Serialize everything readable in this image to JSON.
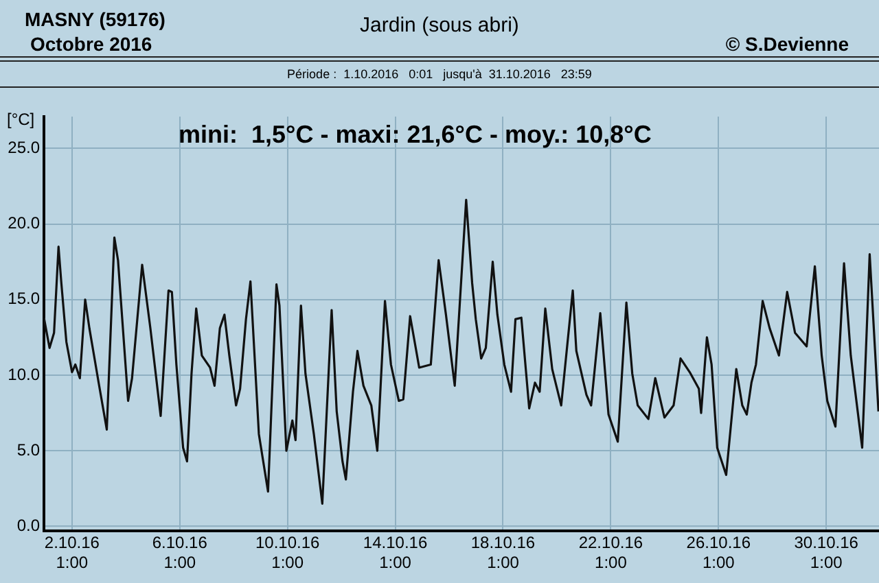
{
  "chart_data": {
    "type": "line",
    "title": "Jardin (sous abri)",
    "subtitle": "Période :  1.10.2016   0:01   jusqu'à  31.10.2016   23:59",
    "ylabel": "[°C]",
    "annotations": [
      "MASNY (59176)",
      "Octobre 2016",
      "© S.Devienne",
      "mini:  1,5°C - maxi: 21,6°C - moy.: 10,8°C"
    ],
    "x": [
      "2016-10-01T00:01",
      "2016-10-01T05:00",
      "2016-10-01T09:00",
      "2016-10-01T13:00",
      "2016-10-01T15:30",
      "2016-10-01T20:00",
      "2016-10-02T01:00",
      "2016-10-02T04:00",
      "2016-10-02T08:00",
      "2016-10-02T12:45",
      "2016-10-02T16:30",
      "2016-10-03T00:45",
      "2016-10-03T08:00",
      "2016-10-03T14:45",
      "2016-10-03T18:00",
      "2016-10-04T03:00",
      "2016-10-04T06:30",
      "2016-10-04T15:30",
      "2016-10-04T22:50",
      "2016-10-05T08:00",
      "2016-10-05T15:00",
      "2016-10-05T18:00",
      "2016-10-05T22:00",
      "2016-10-06T04:00",
      "2016-10-06T07:30",
      "2016-10-06T11:30",
      "2016-10-06T15:40",
      "2016-10-06T20:40",
      "2016-10-07T04:00",
      "2016-10-07T08:00",
      "2016-10-07T12:45",
      "2016-10-07T16:50",
      "2016-10-07T21:10",
      "2016-10-08T03:10",
      "2016-10-08T06:45",
      "2016-10-08T12:00",
      "2016-10-08T16:00",
      "2016-10-08T23:30",
      "2016-10-09T07:40",
      "2016-10-09T15:10",
      "2016-10-09T17:50",
      "2016-10-10T00:00",
      "2016-10-10T05:20",
      "2016-10-10T08:10",
      "2016-10-10T13:00",
      "2016-10-10T17:00",
      "2016-10-11T00:30",
      "2016-10-11T08:00",
      "2016-10-11T16:20",
      "2016-10-11T20:50",
      "2016-10-12T02:00",
      "2016-10-12T05:00",
      "2016-10-12T11:20",
      "2016-10-12T15:20",
      "2016-10-12T20:40",
      "2016-10-13T03:40",
      "2016-10-13T09:00",
      "2016-10-13T15:50",
      "2016-10-13T21:10",
      "2016-10-14T04:10",
      "2016-10-14T08:10",
      "2016-10-14T14:15",
      "2016-10-14T22:20",
      "2016-10-15T08:40",
      "2016-10-15T15:40",
      "2016-10-15T22:10",
      "2016-10-16T06:00",
      "2016-10-16T16:10",
      "2016-10-16T21:30",
      "2016-10-17T00:45",
      "2016-10-17T05:35",
      "2016-10-17T09:40",
      "2016-10-17T15:50",
      "2016-10-17T20:00",
      "2016-10-18T02:10",
      "2016-10-18T08:10",
      "2016-10-18T12:05",
      "2016-10-18T17:20",
      "2016-10-19T00:20",
      "2016-10-19T05:30",
      "2016-10-19T09:40",
      "2016-10-19T14:40",
      "2016-10-19T20:50",
      "2016-10-20T04:50",
      "2016-10-20T15:10",
      "2016-10-20T18:20",
      "2016-10-21T03:20",
      "2016-10-21T07:30",
      "2016-10-21T15:40",
      "2016-10-21T23:00",
      "2016-10-22T07:15",
      "2016-10-22T14:55",
      "2016-10-22T20:10",
      "2016-10-23T01:00",
      "2016-10-23T10:30",
      "2016-10-23T16:40",
      "2016-10-24T00:50",
      "2016-10-24T09:00",
      "2016-10-24T15:10",
      "2016-10-24T23:20",
      "2016-10-25T07:30",
      "2016-10-25T09:30",
      "2016-10-25T14:40",
      "2016-10-25T18:50",
      "2016-10-25T23:50",
      "2016-10-26T07:50",
      "2016-10-26T16:50",
      "2016-10-26T22:10",
      "2016-10-27T02:10",
      "2016-10-27T06:20",
      "2016-10-27T10:20",
      "2016-10-27T16:20",
      "2016-10-27T22:35",
      "2016-10-28T06:50",
      "2016-10-28T14:10",
      "2016-10-28T21:10",
      "2016-10-29T07:30",
      "2016-10-29T14:50",
      "2016-10-29T20:55",
      "2016-10-30T01:55",
      "2016-10-30T09:10",
      "2016-10-30T16:50",
      "2016-10-30T22:50",
      "2016-10-31T09:00",
      "2016-10-31T15:40",
      "2016-10-31T23:30"
    ],
    "series": [
      {
        "color": "#111111",
        "values": [
          13.8,
          11.8,
          12.8,
          18.5,
          16.1,
          12.2,
          10.2,
          10.7,
          9.8,
          15.0,
          13.1,
          9.5,
          6.4,
          19.1,
          17.6,
          8.3,
          9.8,
          17.3,
          13.1,
          7.3,
          15.6,
          15.5,
          10.7,
          5.2,
          4.3,
          10.1,
          14.4,
          11.3,
          10.5,
          9.3,
          13.1,
          14.0,
          11.3,
          8.0,
          9.1,
          13.7,
          16.2,
          6.1,
          2.3,
          16.0,
          14.6,
          5.0,
          7.0,
          5.7,
          14.6,
          10.1,
          6.1,
          1.5,
          14.3,
          7.6,
          4.3,
          3.1,
          8.9,
          11.6,
          9.3,
          8.0,
          5.0,
          14.9,
          10.7,
          8.3,
          8.4,
          13.9,
          10.5,
          10.7,
          17.6,
          14.0,
          9.3,
          21.6,
          16.1,
          13.7,
          11.1,
          11.8,
          17.5,
          14.0,
          10.7,
          8.9,
          13.7,
          13.8,
          7.8,
          9.5,
          8.9,
          14.4,
          10.4,
          8.0,
          15.6,
          11.6,
          8.7,
          8.0,
          14.1,
          7.4,
          5.6,
          14.8,
          10.1,
          8.0,
          7.1,
          9.8,
          7.2,
          8.0,
          11.1,
          10.2,
          9.1,
          7.5,
          12.5,
          10.7,
          5.2,
          3.4,
          10.4,
          8.0,
          7.4,
          9.5,
          10.7,
          14.9,
          13.1,
          11.3,
          15.5,
          12.8,
          11.9,
          17.2,
          11.3,
          8.3,
          6.6,
          17.4,
          11.3,
          5.2,
          18.0,
          7.6
        ]
      }
    ],
    "xlim": [
      "2016-10-01T00:01",
      "2016-10-31T23:59"
    ],
    "xticks": [
      {
        "value": "2016-10-02T01:00",
        "label": "2.10.16 1:00"
      },
      {
        "value": "2016-10-06T01:00",
        "label": "6.10.16 1:00"
      },
      {
        "value": "2016-10-10T01:00",
        "label": "10.10.16 1:00"
      },
      {
        "value": "2016-10-14T01:00",
        "label": "14.10.16 1:00"
      },
      {
        "value": "2016-10-18T01:00",
        "label": "18.10.16 1:00"
      },
      {
        "value": "2016-10-22T01:00",
        "label": "22.10.16 1:00"
      },
      {
        "value": "2016-10-26T01:00",
        "label": "26.10.16 1:00"
      },
      {
        "value": "2016-10-30T01:00",
        "label": "30.10.16 1:00"
      }
    ],
    "ylim": [
      -0.3,
      27.1
    ],
    "yticks": [
      {
        "value": 0,
        "label": "0.0"
      },
      {
        "value": 5,
        "label": "5.0"
      },
      {
        "value": 10,
        "label": "10.0"
      },
      {
        "value": 15,
        "label": "15.0"
      },
      {
        "value": 20,
        "label": "20.0"
      },
      {
        "value": 25,
        "label": "25.0"
      }
    ],
    "grid": true
  }
}
